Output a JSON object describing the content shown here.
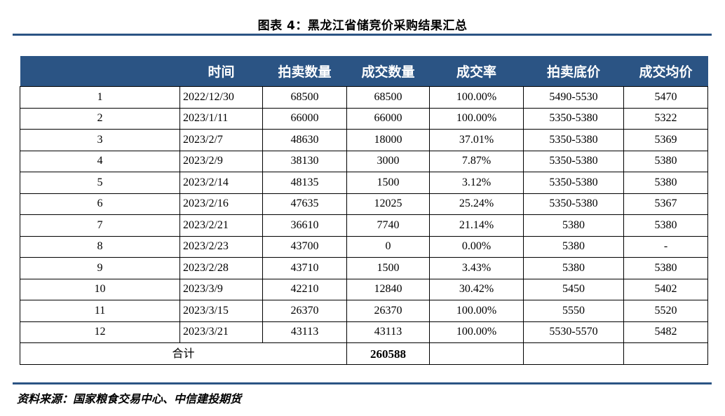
{
  "title": "图表 4：黑龙江省储竞价采购结果汇总",
  "colors": {
    "header_bg": "#2b5484",
    "rule": "#2b5484"
  },
  "table": {
    "headers": [
      "",
      "时间",
      "拍卖数量",
      "成交数量",
      "成交率",
      "拍卖底价",
      "成交均价"
    ],
    "rows": [
      [
        "1",
        "2022/12/30",
        "68500",
        "68500",
        "100.00%",
        "5490-5530",
        "5470"
      ],
      [
        "2",
        "2023/1/11",
        "66000",
        "66000",
        "100.00%",
        "5350-5380",
        "5322"
      ],
      [
        "3",
        "2023/2/7",
        "48630",
        "18000",
        "37.01%",
        "5350-5380",
        "5369"
      ],
      [
        "4",
        "2023/2/9",
        "38130",
        "3000",
        "7.87%",
        "5350-5380",
        "5380"
      ],
      [
        "5",
        "2023/2/14",
        "48135",
        "1500",
        "3.12%",
        "5350-5380",
        "5380"
      ],
      [
        "6",
        "2023/2/16",
        "47635",
        "12025",
        "25.24%",
        "5350-5380",
        "5367"
      ],
      [
        "7",
        "2023/2/21",
        "36610",
        "7740",
        "21.14%",
        "5380",
        "5380"
      ],
      [
        "8",
        "2023/2/23",
        "43700",
        "0",
        "0.00%",
        "5380",
        "-"
      ],
      [
        "9",
        "2023/2/28",
        "43710",
        "1500",
        "3.43%",
        "5380",
        "5380"
      ],
      [
        "10",
        "2023/3/9",
        "42210",
        "12840",
        "30.42%",
        "5450",
        "5402"
      ],
      [
        "11",
        "2023/3/15",
        "26370",
        "26370",
        "100.00%",
        "5550",
        "5520"
      ],
      [
        "12",
        "2023/3/21",
        "43113",
        "43113",
        "100.00%",
        "5530-5570",
        "5482"
      ]
    ],
    "total_label": "合计",
    "total_value": "260588"
  },
  "source": "资料来源：国家粮食交易中心、中信建投期货"
}
